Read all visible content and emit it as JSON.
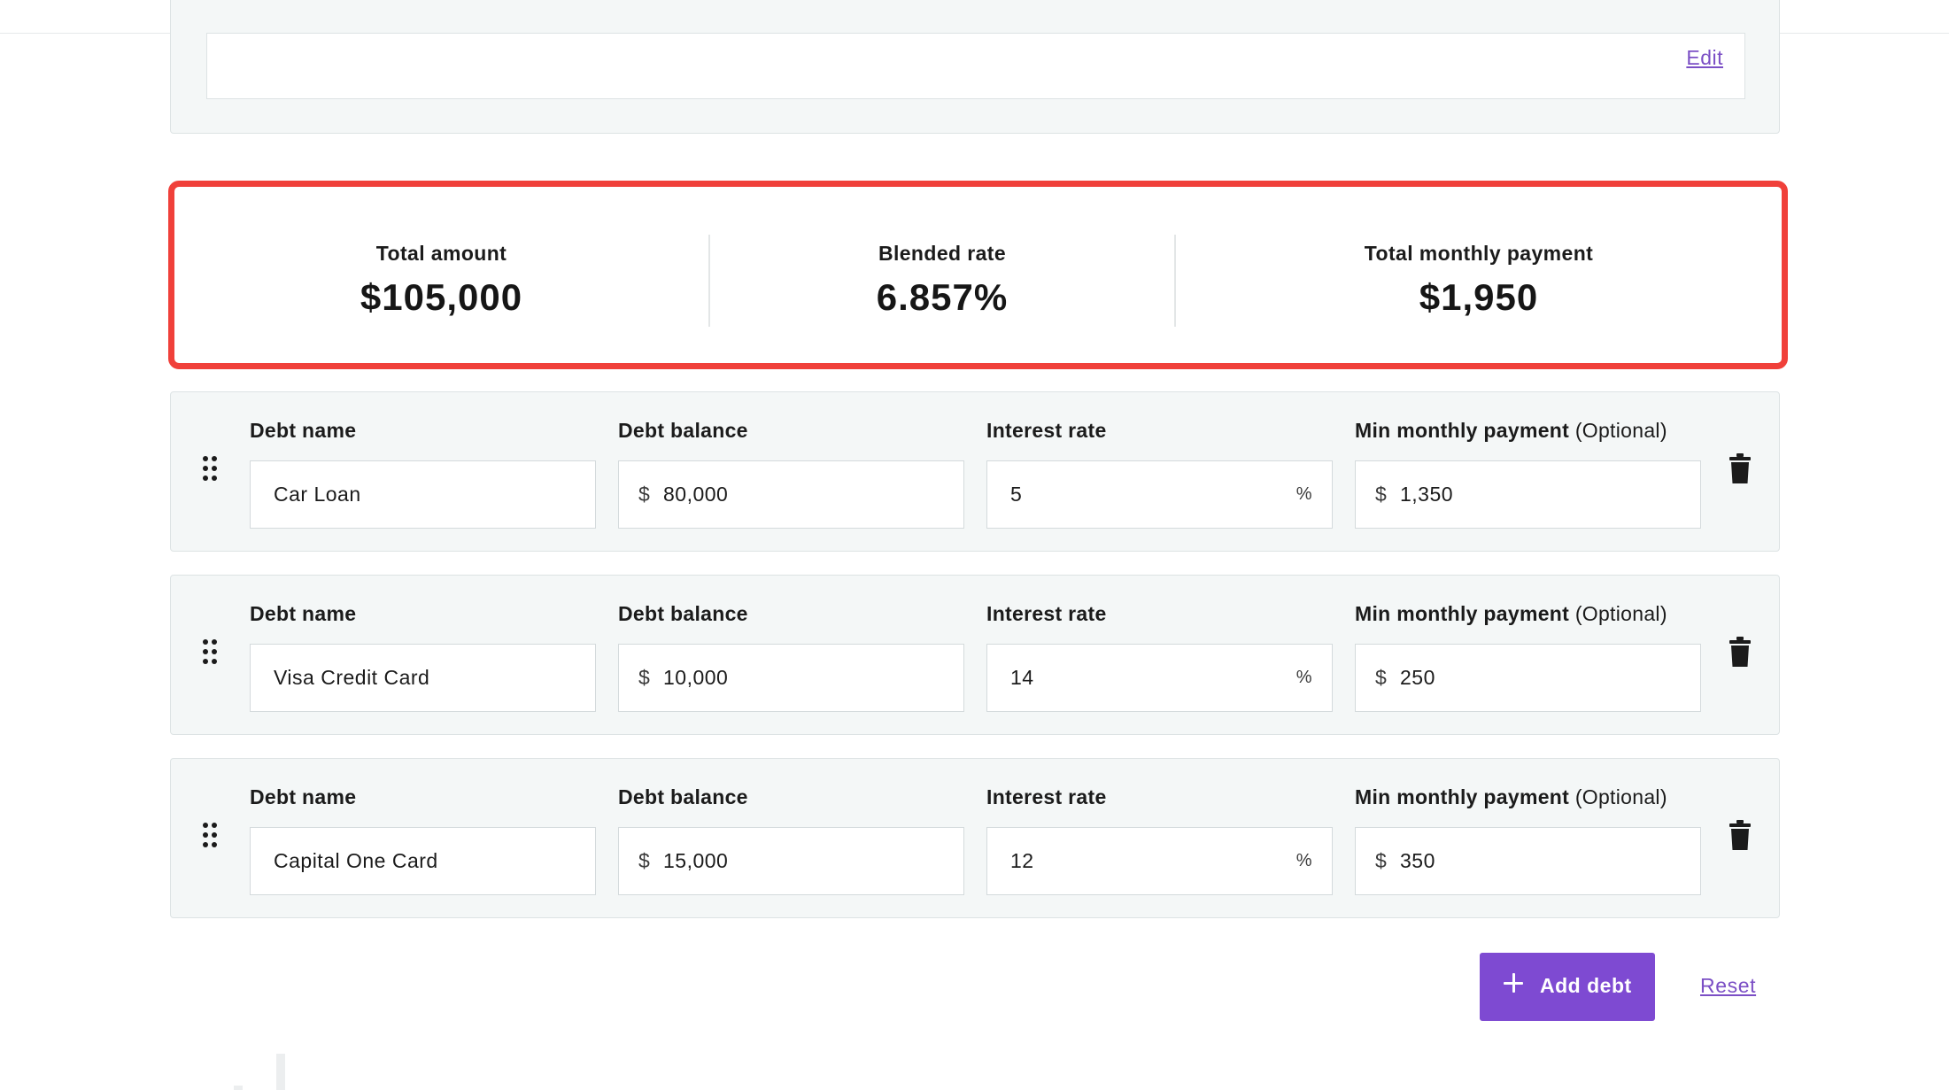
{
  "top_section": {
    "edit_label": "Edit"
  },
  "summary": {
    "total_amount": {
      "label": "Total amount",
      "value": "$105,000"
    },
    "blended_rate": {
      "label": "Blended rate",
      "value": "6.857%"
    },
    "total_monthly_payment": {
      "label": "Total monthly payment",
      "value": "$1,950"
    }
  },
  "labels": {
    "debt_name": "Debt name",
    "debt_balance": "Debt balance",
    "interest_rate": "Interest rate",
    "min_payment": "Min monthly payment",
    "optional": "(Optional)",
    "currency": "$",
    "percent": "%"
  },
  "debts": [
    {
      "name": "Car Loan",
      "balance": "80,000",
      "rate": "5",
      "min_payment": "1,350"
    },
    {
      "name": "Visa Credit Card",
      "balance": "10,000",
      "rate": "14",
      "min_payment": "250"
    },
    {
      "name": "Capital One Card",
      "balance": "15,000",
      "rate": "12",
      "min_payment": "350"
    }
  ],
  "actions": {
    "add_debt": "Add debt",
    "reset": "Reset"
  },
  "icons": {
    "drag": "drag-handle-icon",
    "delete": "trash-icon",
    "add": "plus-icon"
  },
  "colors": {
    "accent": "#7e4ad2",
    "link": "#7b4fc5",
    "highlight": "#f0403a",
    "card_bg": "#f4f7f7"
  }
}
